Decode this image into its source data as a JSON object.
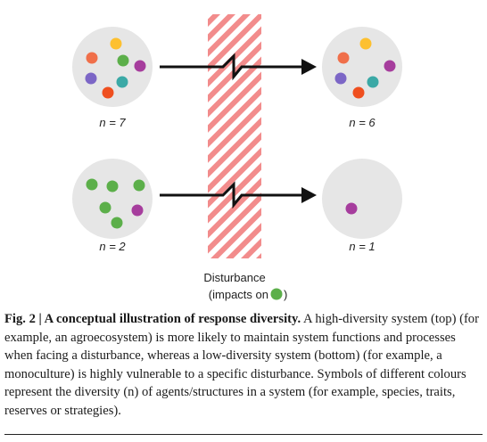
{
  "figure": {
    "systems": [
      {
        "name": "high-diversity",
        "before": {
          "label": "n = 7",
          "n": 7,
          "dots": [
            "#FDC02F",
            "#F06F4A",
            "#5CAF4A",
            "#A63D9D",
            "#7C66C6",
            "#EF4F1F",
            "#3BA9A6"
          ]
        },
        "after": {
          "label": "n = 6",
          "n": 6,
          "dots": [
            "#FDC02F",
            "#F06F4A",
            "#A63D9D",
            "#7C66C6",
            "#EF4F1F",
            "#3BA9A6"
          ]
        }
      },
      {
        "name": "low-diversity",
        "before": {
          "label": "n = 2",
          "n": 2,
          "dots": [
            "#5CAF4A",
            "#5CAF4A",
            "#5CAF4A",
            "#5CAF4A",
            "#A63D9D",
            "#5CAF4A"
          ]
        },
        "after": {
          "label": "n = 1",
          "n": 1,
          "dots": [
            "#A63D9D"
          ]
        }
      }
    ],
    "disturbance": {
      "label": "Disturbance",
      "sublabel": "(impacts on",
      "sublabel_end": ")",
      "impact_color": "#5CAF4A",
      "stripe_color": "#F28C8C"
    }
  },
  "caption": {
    "lead": "Fig. 2 | A conceptual illustration of response diversity.",
    "body": " A high-diversity system (top) (for example, an agroecosystem) is more likely to maintain system functions and processes when facing a disturbance, whereas a low-diversity system (bottom) (for example, a monoculture) is highly vulnerable to a specific disturbance. Symbols of different colours represent the diversity (n) of agents/structures in a system (for example, species, traits, reserves or strategies)."
  }
}
